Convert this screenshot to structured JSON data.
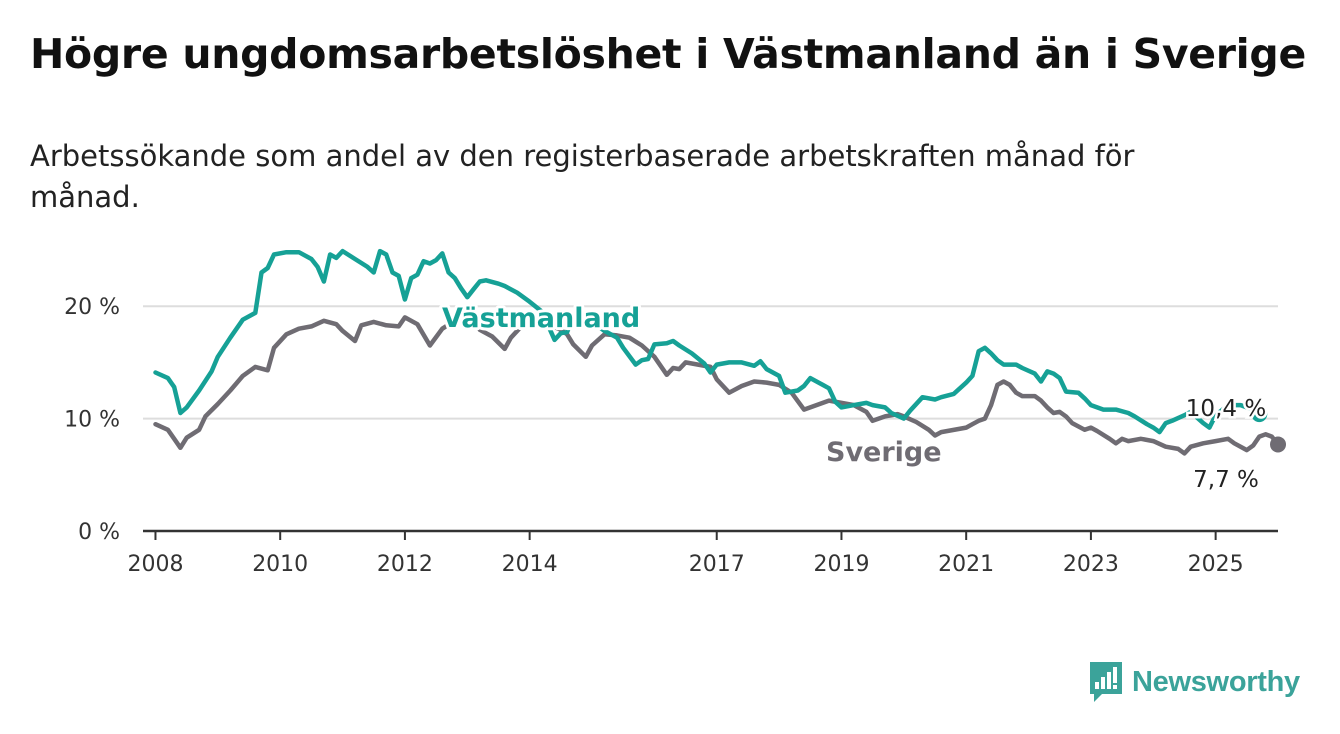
{
  "title": "Högre ungdomsarbetslöshet i Västmanland än i Sverige",
  "subtitle": "Arbetssökande som andel av den registerbaserade arbetskraften månad för månad.",
  "logo": {
    "text": "Newsworthy",
    "icon": "bar-chart-speech-bubble-icon"
  },
  "colors": {
    "vastmanland": "#16a196",
    "sverige": "#6f6c73",
    "grid": "#dddddd",
    "axis": "#333333"
  },
  "chart_data": {
    "type": "line",
    "title": "Högre ungdomsarbetslöshet i Västmanland än i Sverige",
    "xlabel": "",
    "ylabel": "",
    "xlim": [
      2007.8,
      2026.0
    ],
    "ylim": [
      0,
      25
    ],
    "x_ticks": [
      2008,
      2010,
      2012,
      2014,
      2017,
      2019,
      2021,
      2023,
      2025
    ],
    "x_tick_labels": [
      "2008",
      "2010",
      "2012",
      "2014",
      "2017",
      "2019",
      "2021",
      "2023",
      "2025"
    ],
    "y_ticks": [
      0,
      10,
      20
    ],
    "y_tick_labels": [
      "0 %",
      "10 %",
      "20 %"
    ],
    "grid": "horizontal",
    "series": [
      {
        "name": "Västmanland",
        "end_label": "10,4 %",
        "points": [
          [
            2008.0,
            14.1
          ],
          [
            2008.2,
            13.6
          ],
          [
            2008.3,
            12.8
          ],
          [
            2008.4,
            10.5
          ],
          [
            2008.5,
            11.0
          ],
          [
            2008.7,
            12.5
          ],
          [
            2008.9,
            14.2
          ],
          [
            2009.0,
            15.5
          ],
          [
            2009.2,
            17.2
          ],
          [
            2009.4,
            18.8
          ],
          [
            2009.6,
            19.4
          ],
          [
            2009.7,
            23.0
          ],
          [
            2009.8,
            23.4
          ],
          [
            2009.9,
            24.6
          ],
          [
            2010.1,
            24.8
          ],
          [
            2010.3,
            24.8
          ],
          [
            2010.5,
            24.2
          ],
          [
            2010.6,
            23.5
          ],
          [
            2010.7,
            22.2
          ],
          [
            2010.8,
            24.6
          ],
          [
            2010.9,
            24.3
          ],
          [
            2011.0,
            24.9
          ],
          [
            2011.2,
            24.2
          ],
          [
            2011.4,
            23.5
          ],
          [
            2011.5,
            23.0
          ],
          [
            2011.6,
            24.9
          ],
          [
            2011.7,
            24.6
          ],
          [
            2011.8,
            23.0
          ],
          [
            2011.9,
            22.7
          ],
          [
            2012.0,
            20.6
          ],
          [
            2012.1,
            22.5
          ],
          [
            2012.2,
            22.8
          ],
          [
            2012.3,
            24.0
          ],
          [
            2012.4,
            23.8
          ],
          [
            2012.5,
            24.1
          ],
          [
            2012.6,
            24.7
          ],
          [
            2012.7,
            23.0
          ],
          [
            2012.8,
            22.5
          ],
          [
            2012.9,
            21.6
          ],
          [
            2013.0,
            20.8
          ],
          [
            2013.1,
            21.5
          ],
          [
            2013.2,
            22.2
          ],
          [
            2013.3,
            22.3
          ],
          [
            2013.5,
            22.0
          ],
          [
            2013.6,
            21.8
          ],
          [
            2013.8,
            21.2
          ],
          [
            2014.0,
            20.4
          ],
          [
            2014.2,
            19.5
          ],
          [
            2014.4,
            17.0
          ],
          [
            2014.5,
            17.6
          ],
          [
            2014.6,
            17.7
          ],
          [
            2014.7,
            19.1
          ],
          [
            2014.9,
            18.7
          ],
          [
            2015.1,
            18.2
          ],
          [
            2015.2,
            17.8
          ],
          [
            2015.4,
            17.2
          ],
          [
            2015.5,
            16.3
          ],
          [
            2015.7,
            14.8
          ],
          [
            2015.8,
            15.2
          ],
          [
            2015.9,
            15.3
          ],
          [
            2016.0,
            16.6
          ],
          [
            2016.2,
            16.7
          ],
          [
            2016.3,
            16.9
          ],
          [
            2016.4,
            16.5
          ],
          [
            2016.6,
            15.8
          ],
          [
            2016.8,
            14.9
          ],
          [
            2016.9,
            14.1
          ],
          [
            2017.0,
            14.8
          ],
          [
            2017.2,
            15.0
          ],
          [
            2017.4,
            15.0
          ],
          [
            2017.6,
            14.7
          ],
          [
            2017.7,
            15.1
          ],
          [
            2017.8,
            14.4
          ],
          [
            2018.0,
            13.8
          ],
          [
            2018.1,
            12.3
          ],
          [
            2018.3,
            12.5
          ],
          [
            2018.4,
            12.9
          ],
          [
            2018.5,
            13.6
          ],
          [
            2018.7,
            13.0
          ],
          [
            2018.8,
            12.7
          ],
          [
            2018.9,
            11.5
          ],
          [
            2019.0,
            11.0
          ],
          [
            2019.2,
            11.2
          ],
          [
            2019.4,
            11.4
          ],
          [
            2019.5,
            11.2
          ],
          [
            2019.7,
            11.0
          ],
          [
            2019.8,
            10.5
          ],
          [
            2020.0,
            10.0
          ],
          [
            2020.1,
            10.7
          ],
          [
            2020.3,
            11.9
          ],
          [
            2020.5,
            11.7
          ],
          [
            2020.6,
            11.9
          ],
          [
            2020.8,
            12.2
          ],
          [
            2021.0,
            13.2
          ],
          [
            2021.1,
            13.8
          ],
          [
            2021.2,
            16.0
          ],
          [
            2021.3,
            16.3
          ],
          [
            2021.4,
            15.8
          ],
          [
            2021.5,
            15.2
          ],
          [
            2021.6,
            14.8
          ],
          [
            2021.8,
            14.8
          ],
          [
            2021.9,
            14.5
          ],
          [
            2022.1,
            14.0
          ],
          [
            2022.2,
            13.3
          ],
          [
            2022.3,
            14.2
          ],
          [
            2022.4,
            14.0
          ],
          [
            2022.5,
            13.6
          ],
          [
            2022.6,
            12.4
          ],
          [
            2022.8,
            12.3
          ],
          [
            2022.9,
            11.8
          ],
          [
            2023.0,
            11.2
          ],
          [
            2023.2,
            10.8
          ],
          [
            2023.4,
            10.8
          ],
          [
            2023.6,
            10.5
          ],
          [
            2023.7,
            10.2
          ],
          [
            2023.9,
            9.5
          ],
          [
            2024.0,
            9.2
          ],
          [
            2024.1,
            8.8
          ],
          [
            2024.2,
            9.6
          ],
          [
            2024.3,
            9.8
          ],
          [
            2024.5,
            10.3
          ],
          [
            2024.6,
            10.6
          ],
          [
            2024.8,
            9.6
          ],
          [
            2024.9,
            9.2
          ],
          [
            2025.0,
            10.3
          ],
          [
            2025.2,
            11.2
          ],
          [
            2025.4,
            11.2
          ],
          [
            2025.5,
            11.0
          ],
          [
            2025.6,
            10.8
          ],
          [
            2025.7,
            10.4
          ]
        ]
      },
      {
        "name": "Sverige",
        "end_label": "7,7 %",
        "points": [
          [
            2008.0,
            9.5
          ],
          [
            2008.2,
            9.0
          ],
          [
            2008.3,
            8.2
          ],
          [
            2008.4,
            7.4
          ],
          [
            2008.5,
            8.3
          ],
          [
            2008.7,
            9.0
          ],
          [
            2008.8,
            10.2
          ],
          [
            2009.0,
            11.3
          ],
          [
            2009.2,
            12.5
          ],
          [
            2009.4,
            13.8
          ],
          [
            2009.6,
            14.6
          ],
          [
            2009.8,
            14.3
          ],
          [
            2009.9,
            16.3
          ],
          [
            2010.1,
            17.5
          ],
          [
            2010.3,
            18.0
          ],
          [
            2010.5,
            18.2
          ],
          [
            2010.7,
            18.7
          ],
          [
            2010.9,
            18.4
          ],
          [
            2011.0,
            17.8
          ],
          [
            2011.2,
            16.9
          ],
          [
            2011.3,
            18.3
          ],
          [
            2011.5,
            18.6
          ],
          [
            2011.7,
            18.3
          ],
          [
            2011.9,
            18.2
          ],
          [
            2012.0,
            19.0
          ],
          [
            2012.2,
            18.4
          ],
          [
            2012.4,
            16.5
          ],
          [
            2012.6,
            18.0
          ],
          [
            2012.8,
            18.7
          ],
          [
            2013.0,
            19.0
          ],
          [
            2013.1,
            19.1
          ],
          [
            2013.2,
            17.9
          ],
          [
            2013.4,
            17.3
          ],
          [
            2013.6,
            16.2
          ],
          [
            2013.7,
            17.2
          ],
          [
            2013.9,
            18.4
          ],
          [
            2014.1,
            18.6
          ],
          [
            2014.3,
            18.4
          ],
          [
            2014.5,
            17.9
          ],
          [
            2014.6,
            17.5
          ],
          [
            2014.7,
            16.6
          ],
          [
            2014.9,
            15.5
          ],
          [
            2015.0,
            16.5
          ],
          [
            2015.2,
            17.5
          ],
          [
            2015.4,
            17.4
          ],
          [
            2015.6,
            17.2
          ],
          [
            2015.8,
            16.5
          ],
          [
            2016.0,
            15.5
          ],
          [
            2016.2,
            13.9
          ],
          [
            2016.3,
            14.5
          ],
          [
            2016.4,
            14.4
          ],
          [
            2016.5,
            15.0
          ],
          [
            2016.7,
            14.8
          ],
          [
            2016.9,
            14.6
          ],
          [
            2017.0,
            13.5
          ],
          [
            2017.2,
            12.3
          ],
          [
            2017.4,
            12.9
          ],
          [
            2017.6,
            13.3
          ],
          [
            2017.8,
            13.2
          ],
          [
            2018.0,
            13.0
          ],
          [
            2018.2,
            12.3
          ],
          [
            2018.4,
            10.8
          ],
          [
            2018.6,
            11.2
          ],
          [
            2018.8,
            11.6
          ],
          [
            2019.0,
            11.4
          ],
          [
            2019.2,
            11.2
          ],
          [
            2019.4,
            10.6
          ],
          [
            2019.5,
            9.8
          ],
          [
            2019.7,
            10.2
          ],
          [
            2019.9,
            10.4
          ],
          [
            2020.0,
            10.2
          ],
          [
            2020.2,
            9.7
          ],
          [
            2020.4,
            9.0
          ],
          [
            2020.5,
            8.5
          ],
          [
            2020.6,
            8.8
          ],
          [
            2021.0,
            9.2
          ],
          [
            2021.1,
            9.5
          ],
          [
            2021.2,
            9.8
          ],
          [
            2021.3,
            10.0
          ],
          [
            2021.4,
            11.2
          ],
          [
            2021.5,
            13.0
          ],
          [
            2021.6,
            13.3
          ],
          [
            2021.7,
            13.0
          ],
          [
            2021.8,
            12.3
          ],
          [
            2021.9,
            12.0
          ],
          [
            2022.1,
            12.0
          ],
          [
            2022.2,
            11.6
          ],
          [
            2022.3,
            11.0
          ],
          [
            2022.4,
            10.5
          ],
          [
            2022.5,
            10.6
          ],
          [
            2022.6,
            10.2
          ],
          [
            2022.7,
            9.6
          ],
          [
            2022.9,
            9.0
          ],
          [
            2023.0,
            9.2
          ],
          [
            2023.1,
            8.9
          ],
          [
            2023.3,
            8.2
          ],
          [
            2023.4,
            7.8
          ],
          [
            2023.5,
            8.2
          ],
          [
            2023.6,
            8.0
          ],
          [
            2023.8,
            8.2
          ],
          [
            2024.0,
            8.0
          ],
          [
            2024.2,
            7.5
          ],
          [
            2024.4,
            7.3
          ],
          [
            2024.5,
            6.9
          ],
          [
            2024.6,
            7.5
          ],
          [
            2024.8,
            7.8
          ],
          [
            2025.0,
            8.0
          ],
          [
            2025.2,
            8.2
          ],
          [
            2025.3,
            7.8
          ],
          [
            2025.5,
            7.2
          ],
          [
            2025.6,
            7.6
          ],
          [
            2025.7,
            8.4
          ],
          [
            2025.8,
            8.6
          ],
          [
            2025.9,
            8.4
          ],
          [
            2026.0,
            7.7
          ]
        ]
      }
    ]
  }
}
